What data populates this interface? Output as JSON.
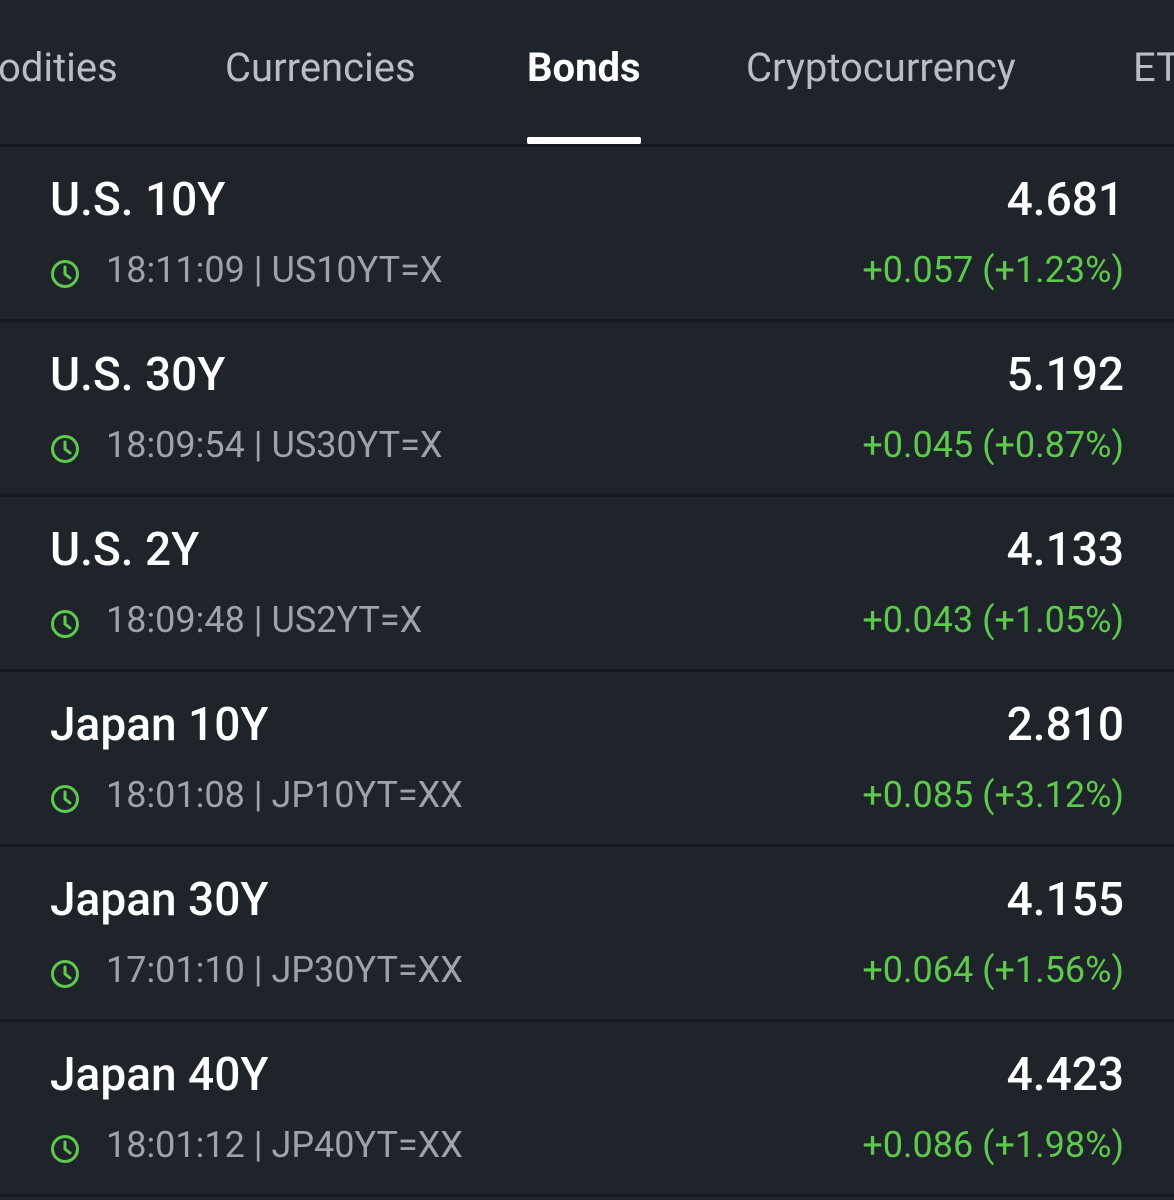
{
  "tabs": [
    "odities",
    "Currencies",
    "Bonds",
    "Cryptocurrency",
    "ET"
  ],
  "active_tab": "Bonds",
  "rows": [
    {
      "name": "U.S. 10Y",
      "price": "4.681",
      "meta": "18:11:09 | US10YT=X",
      "change": "+0.057 (+1.23%)"
    },
    {
      "name": "U.S. 30Y",
      "price": "5.192",
      "meta": "18:09:54 | US30YT=X",
      "change": "+0.045 (+0.87%)"
    },
    {
      "name": "U.S. 2Y",
      "price": "4.133",
      "meta": "18:09:48 | US2YT=X",
      "change": "+0.043 (+1.05%)"
    },
    {
      "name": "Japan 10Y",
      "price": "2.810",
      "meta": "18:01:08 | JP10YT=XX",
      "change": "+0.085 (+3.12%)"
    },
    {
      "name": "Japan 30Y",
      "price": "4.155",
      "meta": "17:01:10 | JP30YT=XX",
      "change": "+0.064 (+1.56%)"
    },
    {
      "name": "Japan 40Y",
      "price": "4.423",
      "meta": "18:01:12 | JP40YT=XX",
      "change": "+0.086 (+1.98%)"
    }
  ]
}
